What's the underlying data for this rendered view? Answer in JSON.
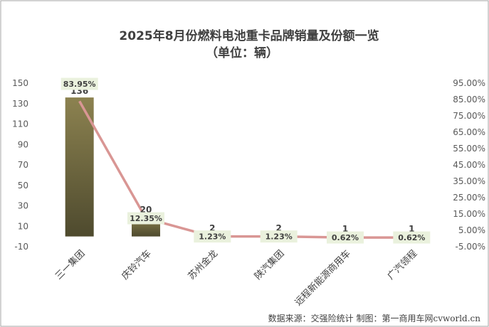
{
  "chart_data": {
    "type": "bar",
    "title": "2025年8月份燃料电池重卡品牌销量及份额一览",
    "subtitle": "（单位：辆）",
    "categories": [
      "三一集团",
      "庆铃汽车",
      "苏州金龙",
      "陕汽集团",
      "远程新能源商用车",
      "广汽领程"
    ],
    "series": [
      {
        "type": "bar",
        "axis": "left",
        "values": [
          136,
          20,
          2,
          2,
          1,
          1
        ],
        "labels": [
          "136",
          "20",
          "2",
          "2",
          "1",
          "1"
        ]
      },
      {
        "type": "line",
        "axis": "right",
        "values": [
          83.95,
          12.35,
          1.23,
          1.23,
          0.62,
          0.62
        ],
        "labels": [
          "83.95%",
          "12.35%",
          "1.23%",
          "1.23%",
          "0.62%",
          "0.62%"
        ]
      }
    ],
    "ylim": [
      -10,
      150
    ],
    "yticks": [
      "150",
      "130",
      "110",
      "90",
      "70",
      "50",
      "30",
      "10",
      "-10"
    ],
    "y2lim": [
      -5,
      95
    ],
    "y2ticks": [
      "95.00%",
      "85.00%",
      "75.00%",
      "65.00%",
      "55.00%",
      "45.00%",
      "35.00%",
      "25.00%",
      "15.00%",
      "5.00%",
      "-5.00%"
    ],
    "grid": false,
    "legend": "none"
  },
  "source": "数据来源：交强险统计  制图：第一商用车网cvworld.cn",
  "colors": {
    "bar_top": "#8c8250",
    "bar_bottom": "#4e4a2e",
    "line": "#d99694",
    "label_bg": "#eaf1dd",
    "border": "#a6a6a6"
  }
}
